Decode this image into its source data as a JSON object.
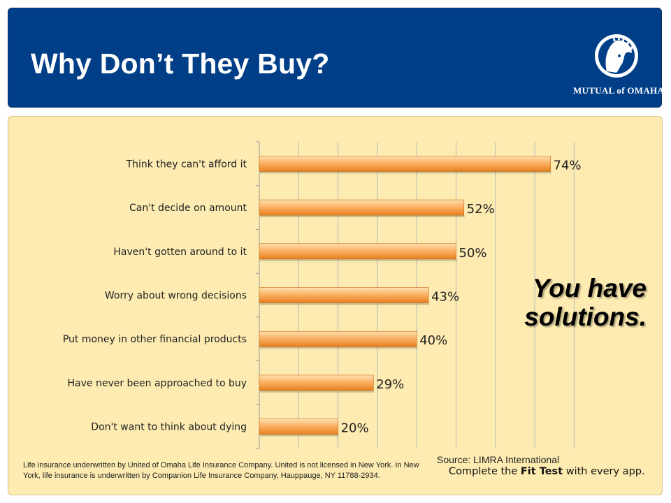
{
  "header": {
    "title": "Why Don’t They Buy?",
    "logo_text": "MUTUAL of OMAHA"
  },
  "colors": {
    "header_bg": "#003f87",
    "panel_bg": "#fdebb1",
    "bar_light": "#ffd79a",
    "bar_dark": "#f0892a"
  },
  "chart_data": {
    "type": "bar",
    "orientation": "horizontal",
    "categories": [
      "Think they can't afford it",
      "Can't decide on amount",
      "Haven't gotten around to it",
      "Worry about wrong decisions",
      "Put money in other financial products",
      "Have never been approached to buy",
      "Don't want to think about dying"
    ],
    "values": [
      74,
      52,
      50,
      43,
      40,
      29,
      20
    ],
    "value_labels": [
      "74%",
      "52%",
      "50%",
      "43%",
      "40%",
      "29%",
      "20%"
    ],
    "xlim": [
      0,
      80
    ],
    "grid": true
  },
  "callout": {
    "line1": "You have",
    "line2": "solutions."
  },
  "source": "Source: LIMRA International",
  "fit_test": {
    "before": "Complete the ",
    "bold": "Fit Test",
    "after": " with every app."
  },
  "disclaimer": "Life insurance underwritten by United of Omaha Life Insurance Company. United is not licensed in New York. In New York, life insurance is underwritten by Companion Life Insurance Company, Hauppauge, NY 11788-2934."
}
